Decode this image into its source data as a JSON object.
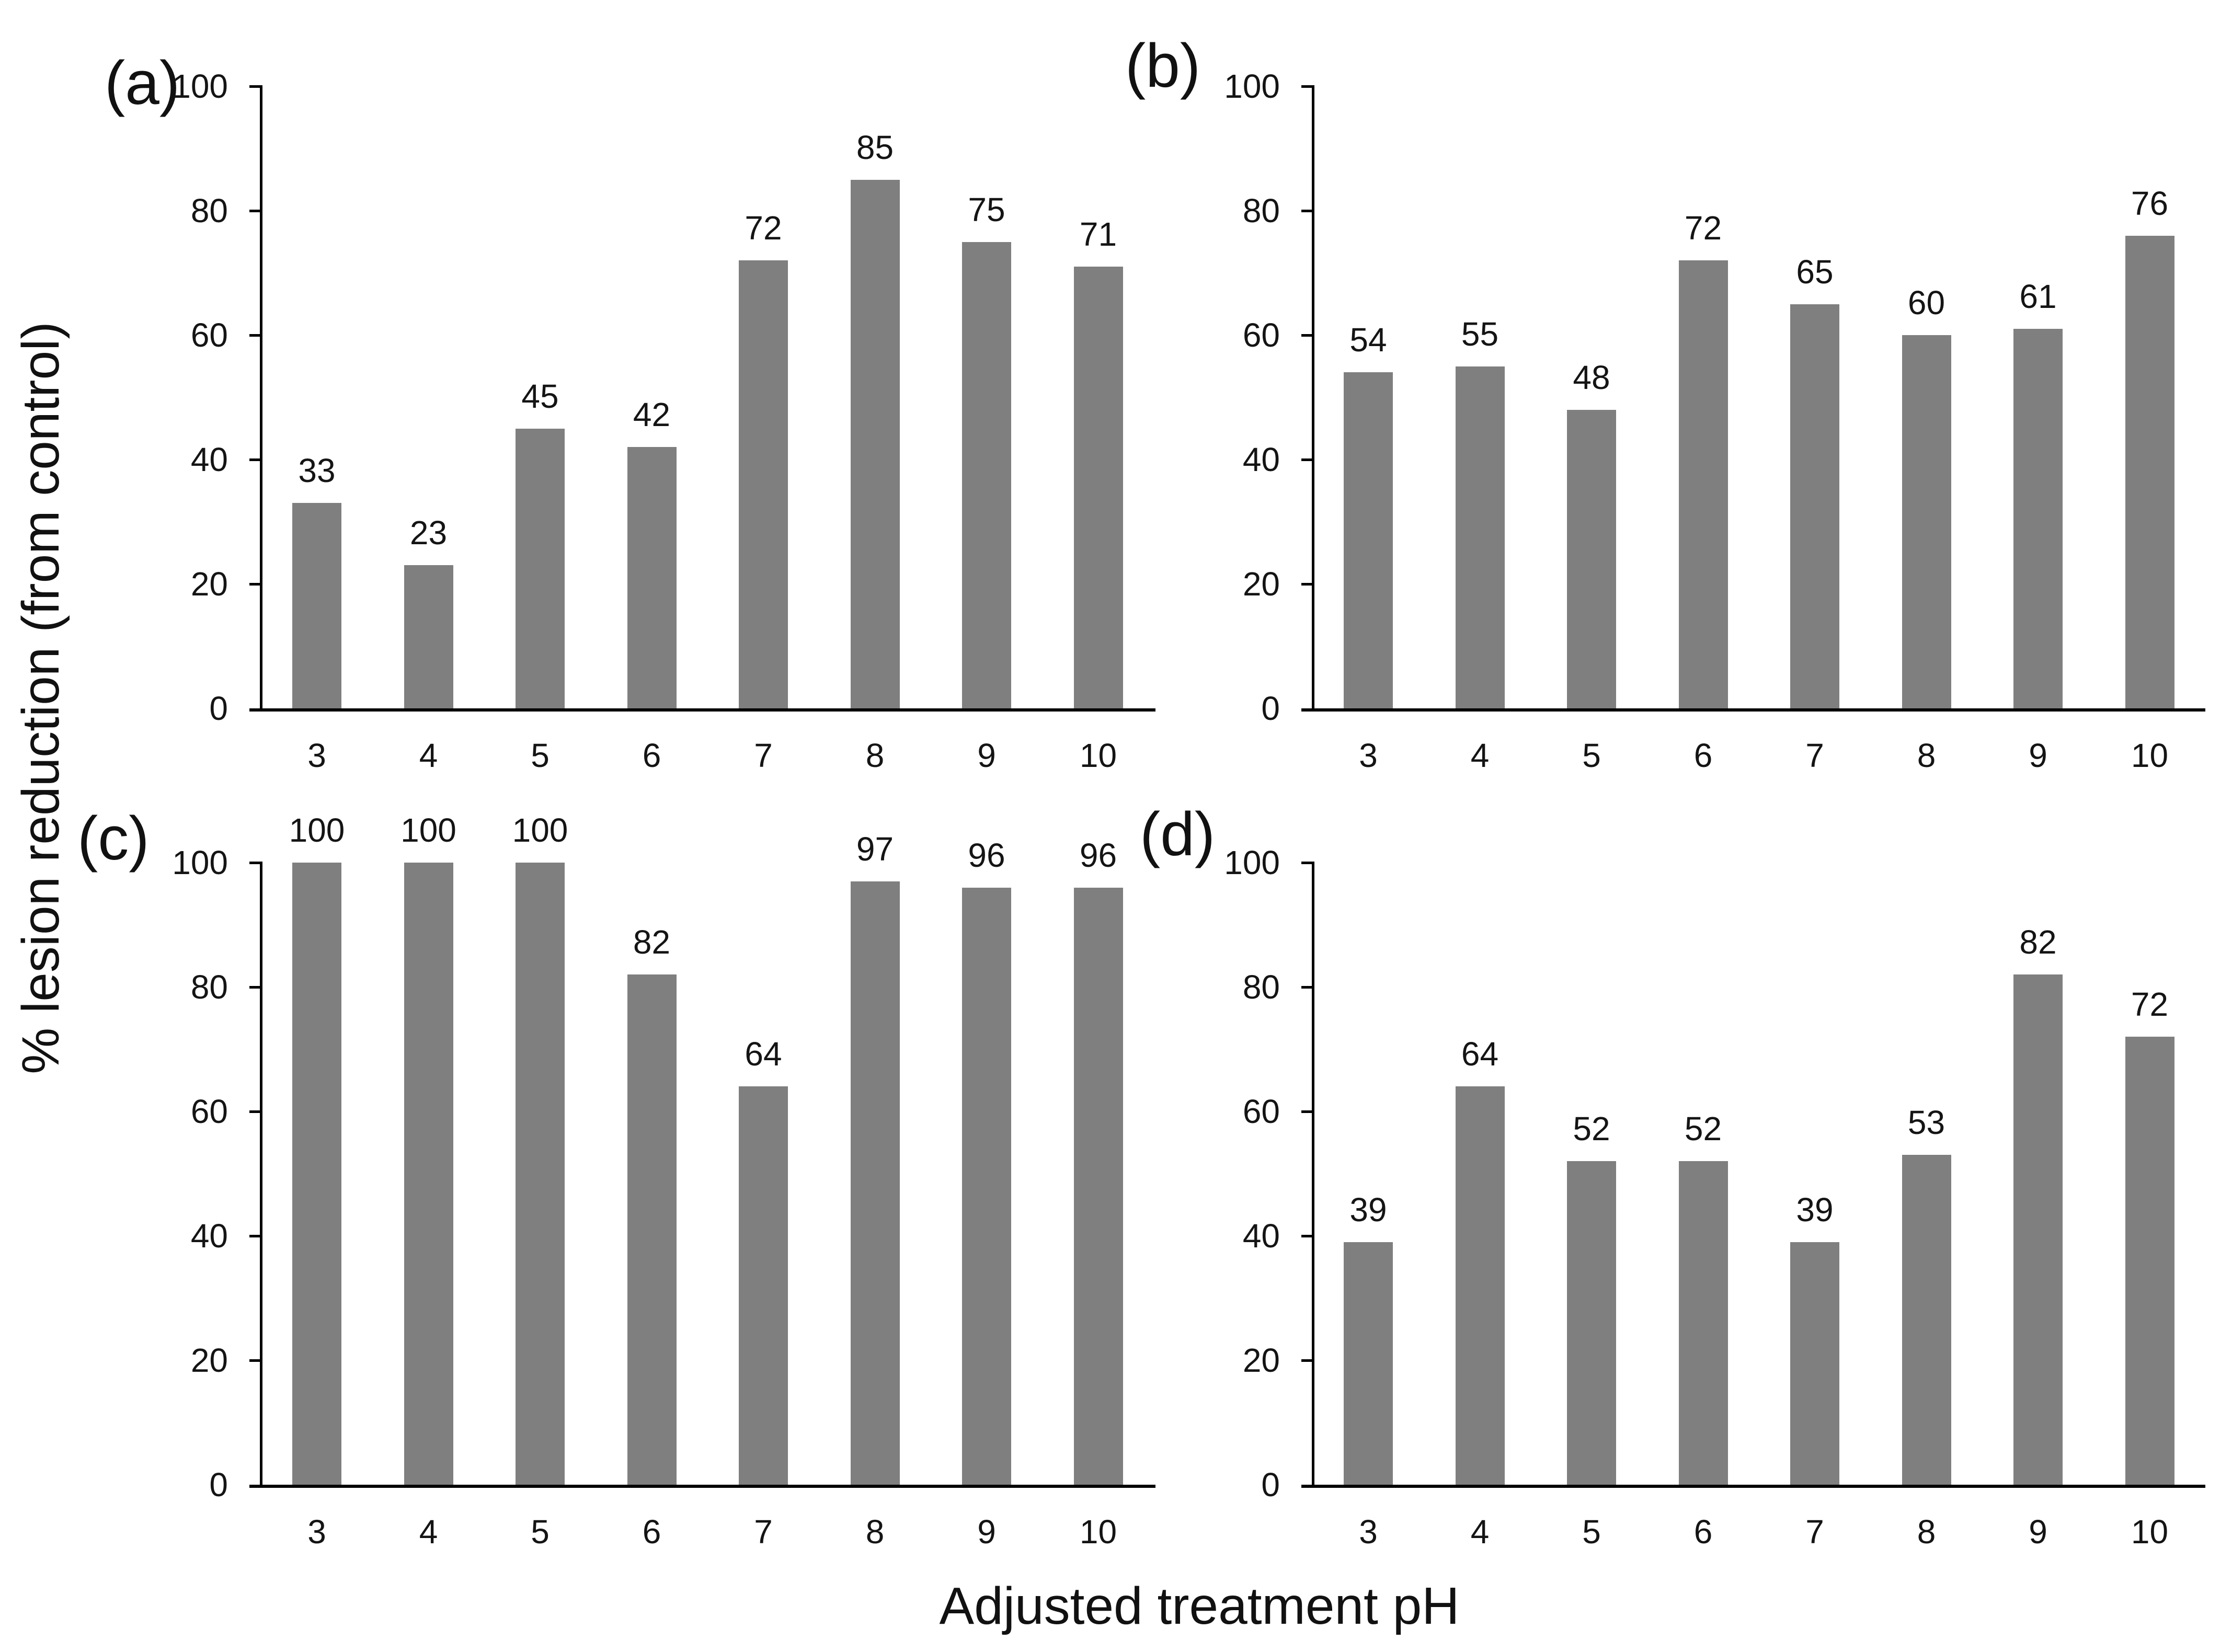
{
  "figure": {
    "x_axis_title": "Adjusted treatment pH",
    "y_axis_title": "% lesion reduction (from control)",
    "bar_color": "#7F7F7F",
    "axis_color": "#000000",
    "background_color": "#FFFFFF",
    "grid": "off",
    "legend": "none"
  },
  "chart_data": [
    {
      "type": "bar",
      "title": "(a)",
      "categories": [
        "3",
        "4",
        "5",
        "6",
        "7",
        "8",
        "9",
        "10"
      ],
      "values": [
        33,
        23,
        45,
        42,
        72,
        85,
        75,
        71
      ],
      "xlabel": "Adjusted treatment pH",
      "ylabel": "% lesion reduction (from control)",
      "ylim": [
        0,
        100
      ],
      "yticks": [
        0,
        20,
        40,
        60,
        80,
        100
      ],
      "data_labels": "above bars"
    },
    {
      "type": "bar",
      "title": "(b)",
      "categories": [
        "3",
        "4",
        "5",
        "6",
        "7",
        "8",
        "9",
        "10"
      ],
      "values": [
        54,
        55,
        48,
        72,
        65,
        60,
        61,
        76
      ],
      "xlabel": "Adjusted treatment pH",
      "ylabel": "% lesion reduction (from control)",
      "ylim": [
        0,
        100
      ],
      "yticks": [
        0,
        20,
        40,
        60,
        80,
        100
      ],
      "data_labels": "above bars"
    },
    {
      "type": "bar",
      "title": "(c)",
      "categories": [
        "3",
        "4",
        "5",
        "6",
        "7",
        "8",
        "9",
        "10"
      ],
      "values": [
        100,
        100,
        100,
        82,
        64,
        97,
        96,
        96
      ],
      "xlabel": "Adjusted treatment pH",
      "ylabel": "% lesion reduction (from control)",
      "ylim": [
        0,
        100
      ],
      "yticks": [
        0,
        20,
        40,
        60,
        80,
        100
      ],
      "data_labels": "above bars"
    },
    {
      "type": "bar",
      "title": "(d)",
      "categories": [
        "3",
        "4",
        "5",
        "6",
        "7",
        "8",
        "9",
        "10"
      ],
      "values": [
        39,
        64,
        52,
        52,
        39,
        53,
        82,
        72
      ],
      "xlabel": "Adjusted treatment pH",
      "ylabel": "% lesion reduction (from control)",
      "ylim": [
        0,
        100
      ],
      "yticks": [
        0,
        20,
        40,
        60,
        80,
        100
      ],
      "data_labels": "above bars"
    }
  ]
}
